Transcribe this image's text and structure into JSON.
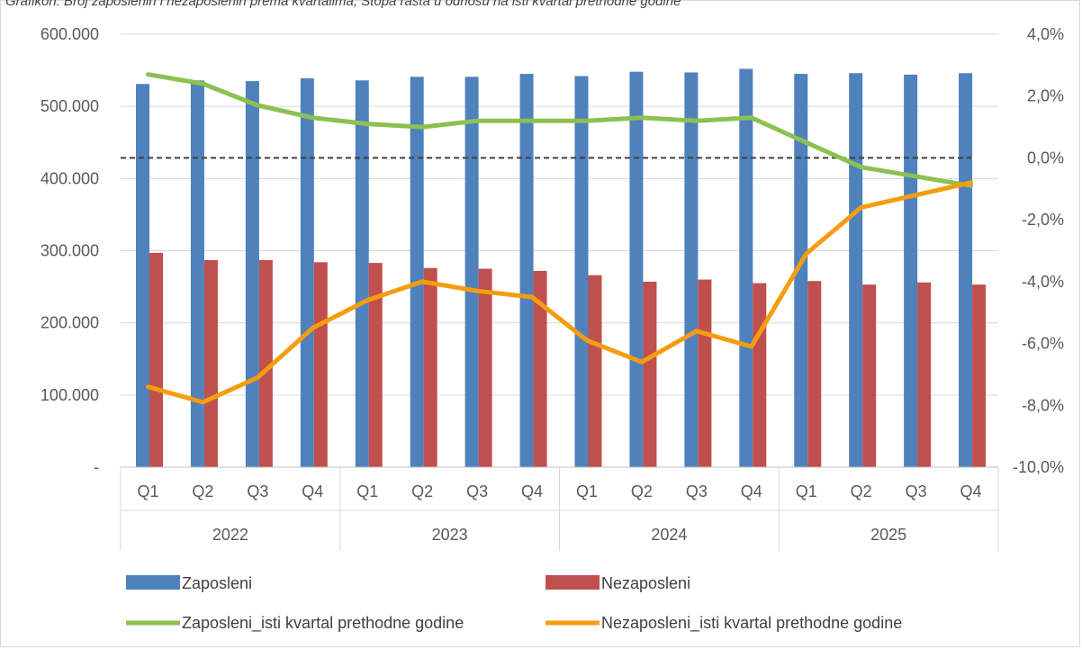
{
  "caption": "Grafikon: Broj zaposlenih i nezaposlenih prema kvartalima; Stopa rasta u odnosu na isti kvartal prethodne godine",
  "chart_data": {
    "type": "bar",
    "categories": [
      "Q1",
      "Q2",
      "Q3",
      "Q4",
      "Q1",
      "Q2",
      "Q3",
      "Q4",
      "Q1",
      "Q2",
      "Q3",
      "Q4",
      "Q1",
      "Q2",
      "Q3",
      "Q4"
    ],
    "groups": [
      {
        "label": "2022",
        "span": 4
      },
      {
        "label": "2023",
        "span": 4
      },
      {
        "label": "2024",
        "span": 4
      },
      {
        "label": "2025",
        "span": 4
      }
    ],
    "series": [
      {
        "name": "Zaposleni",
        "type": "bar",
        "axis": "left",
        "color": "#4f81bd",
        "values": [
          531000,
          536000,
          535000,
          539000,
          536000,
          541000,
          541000,
          545000,
          542000,
          548000,
          547000,
          552000,
          545000,
          546000,
          544000,
          546000
        ]
      },
      {
        "name": "Nezaposleni",
        "type": "bar",
        "axis": "left",
        "color": "#c0504d",
        "values": [
          297000,
          287000,
          287000,
          284000,
          283000,
          276000,
          275000,
          272000,
          266000,
          257000,
          260000,
          255000,
          258000,
          253000,
          256000,
          253000
        ]
      },
      {
        "name": "Zaposleni_isti kvartal prethodne godine",
        "type": "line",
        "axis": "right",
        "color": "#8cc152",
        "values": [
          2.7,
          2.4,
          1.7,
          1.3,
          1.1,
          1.0,
          1.2,
          1.2,
          1.2,
          1.3,
          1.2,
          1.3,
          0.5,
          -0.3,
          -0.6,
          -0.9
        ]
      },
      {
        "name": "Nezaposleni_isti kvartal prethodne godine",
        "type": "line",
        "axis": "right",
        "color": "#f59d0e",
        "values": [
          -7.4,
          -7.9,
          -7.1,
          -5.5,
          -4.6,
          -4.0,
          -4.3,
          -4.5,
          -5.9,
          -6.6,
          -5.6,
          -6.1,
          -3.1,
          -1.6,
          -1.2,
          -0.8
        ]
      }
    ],
    "y_left": {
      "min": 0,
      "max": 600000,
      "ticks": [
        "-",
        "100.000",
        "200.000",
        "300.000",
        "400.000",
        "500.000",
        "600.000"
      ]
    },
    "y_right": {
      "min": -10,
      "max": 4,
      "ticks": [
        "-10,0%",
        "-8,0%",
        "-6,0%",
        "-4,0%",
        "-2,0%",
        "0,0%",
        "2,0%",
        "4,0%"
      ]
    },
    "reference_line": {
      "axis": "right",
      "value": 0,
      "style": "dashed"
    },
    "grid": true,
    "legend_position": "bottom"
  }
}
